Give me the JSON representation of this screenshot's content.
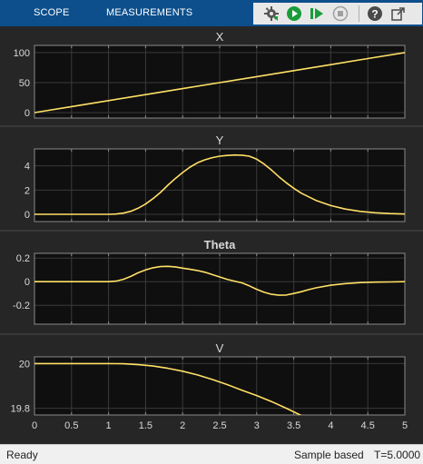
{
  "tabs": [
    {
      "label": "SCOPE"
    },
    {
      "label": "MEASUREMENTS"
    }
  ],
  "toolbar": {
    "icons": [
      "settings-gear-icon",
      "run-icon",
      "step-forward-icon",
      "stop-icon",
      "help-icon",
      "undock-icon"
    ],
    "colors": {
      "run": "#1a9c3a",
      "step": "#1a9c3a",
      "stop": "#9a9a9a"
    }
  },
  "theme": {
    "toolstrip_bg": "#0c4f8c",
    "plot_bg": "#0f0f0f",
    "figure_bg": "#262626",
    "grid": "#3a3a3a",
    "axes": "#8a8a8a",
    "text": "#d9d9d9",
    "trace": "#ffe066"
  },
  "chart_data": [
    {
      "type": "line",
      "title": "X",
      "x": [
        0,
        0.5,
        1,
        1.5,
        2,
        2.5,
        3,
        3.5,
        4,
        4.5,
        5
      ],
      "y": [
        0,
        10,
        20,
        30,
        40,
        50,
        60,
        70,
        80,
        90,
        100
      ],
      "xlim": [
        0,
        5
      ],
      "ylim": [
        -9,
        112
      ],
      "yticks": [
        0,
        50,
        100
      ],
      "ytick_labels": [
        "0",
        "50",
        "100"
      ],
      "grid": true
    },
    {
      "type": "line",
      "title": "Y",
      "x": [
        0,
        0.5,
        1.0,
        1.1,
        1.2,
        1.3,
        1.4,
        1.5,
        1.6,
        1.7,
        1.8,
        1.9,
        2.0,
        2.1,
        2.2,
        2.3,
        2.4,
        2.5,
        2.6,
        2.7,
        2.8,
        2.9,
        3.0,
        3.1,
        3.2,
        3.3,
        3.4,
        3.5,
        3.6,
        3.8,
        4.0,
        4.2,
        4.4,
        4.6,
        4.8,
        5.0
      ],
      "y": [
        0,
        0,
        0,
        0.02,
        0.1,
        0.25,
        0.5,
        0.85,
        1.3,
        1.8,
        2.4,
        2.95,
        3.45,
        3.9,
        4.25,
        4.5,
        4.68,
        4.8,
        4.86,
        4.9,
        4.88,
        4.8,
        4.55,
        4.15,
        3.65,
        3.1,
        2.6,
        2.15,
        1.75,
        1.15,
        0.72,
        0.43,
        0.24,
        0.13,
        0.06,
        0.02
      ],
      "xlim": [
        0,
        5
      ],
      "ylim": [
        -0.6,
        5.4
      ],
      "yticks": [
        0,
        2,
        4
      ],
      "ytick_labels": [
        "0",
        "2",
        "4"
      ],
      "grid": true
    },
    {
      "type": "line",
      "title": "Theta",
      "x": [
        0,
        0.5,
        1.0,
        1.1,
        1.2,
        1.3,
        1.4,
        1.5,
        1.6,
        1.7,
        1.8,
        1.9,
        2.0,
        2.1,
        2.2,
        2.3,
        2.4,
        2.5,
        2.6,
        2.7,
        2.8,
        2.9,
        3.0,
        3.1,
        3.2,
        3.3,
        3.4,
        3.5,
        3.6,
        3.7,
        3.8,
        4.0,
        4.2,
        4.4,
        4.6,
        4.8,
        5.0
      ],
      "y": [
        0,
        0,
        0,
        0.005,
        0.02,
        0.045,
        0.075,
        0.1,
        0.118,
        0.128,
        0.13,
        0.125,
        0.115,
        0.105,
        0.095,
        0.08,
        0.06,
        0.04,
        0.02,
        0.005,
        -0.01,
        -0.035,
        -0.065,
        -0.09,
        -0.107,
        -0.115,
        -0.113,
        -0.1,
        -0.085,
        -0.068,
        -0.052,
        -0.03,
        -0.016,
        -0.008,
        -0.004,
        -0.002,
        0
      ],
      "xlim": [
        0,
        5
      ],
      "ylim": [
        -0.36,
        0.24
      ],
      "yticks": [
        -0.2,
        0,
        0.2
      ],
      "ytick_labels": [
        "-0.2",
        "0",
        "0.2"
      ],
      "grid": true
    },
    {
      "type": "line",
      "title": "V",
      "x": [
        0,
        0.5,
        1.0,
        1.2,
        1.4,
        1.6,
        1.8,
        2.0,
        2.2,
        2.4,
        2.6,
        2.8,
        3.0,
        3.2,
        3.4,
        3.6
      ],
      "y": [
        20,
        20,
        20,
        19.999,
        19.995,
        19.989,
        19.979,
        19.966,
        19.949,
        19.929,
        19.906,
        19.881,
        19.857,
        19.83,
        19.8,
        19.768
      ],
      "xlim": [
        0,
        5
      ],
      "ylim": [
        19.77,
        20.03
      ],
      "yticks": [
        19.8,
        20
      ],
      "ytick_labels": [
        "19.8",
        "20"
      ],
      "xticks": [
        0,
        0.5,
        1,
        1.5,
        2,
        2.5,
        3,
        3.5,
        4,
        4.5,
        5
      ],
      "xtick_labels": [
        "0",
        "0.5",
        "1",
        "1.5",
        "2",
        "2.5",
        "3",
        "3.5",
        "4",
        "4.5",
        "5"
      ],
      "grid": true
    }
  ],
  "status": {
    "state": "Ready",
    "mode": "Sample based",
    "time": "T=5.0000"
  }
}
